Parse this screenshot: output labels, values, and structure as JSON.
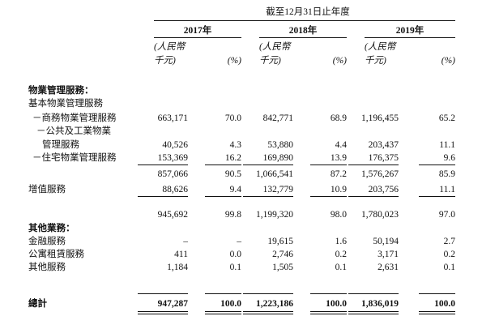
{
  "header": {
    "title": "截至12月31日止年度",
    "years": [
      "2017年",
      "2018年",
      "2019年"
    ],
    "units": [
      {
        "amount": [
          "(人民幣",
          "千元)"
        ],
        "pct": "(%)"
      },
      {
        "amount": [
          "(人民幣",
          "千元)"
        ],
        "pct": "(%)"
      },
      {
        "amount": [
          "(人民幣",
          "千元)"
        ],
        "pct": "(%)"
      }
    ]
  },
  "table": {
    "rows": [
      {
        "label": "物業管理服務："
      },
      {
        "label": "基本物業管理服務"
      },
      {
        "label": "－商務物業管理服務",
        "cells": [
          "663,171",
          "70.0",
          "842,771",
          "68.9",
          "1,196,455",
          "65.2"
        ]
      },
      {
        "label": "－公共及工業物業"
      },
      {
        "label": "管理服務",
        "cells": [
          "40,526",
          "4.3",
          "53,880",
          "4.4",
          "203,437",
          "11.1"
        ]
      },
      {
        "label": "－住宅物業管理服務",
        "cells": [
          "153,369",
          "16.2",
          "169,890",
          "13.9",
          "176,375",
          "9.6"
        ]
      },
      {
        "cells": [
          "857,066",
          "90.5",
          "1,066,541",
          "87.2",
          "1,576,267",
          "85.9"
        ]
      },
      {
        "label": "增值服務",
        "cells": [
          "88,626",
          "9.4",
          "132,779",
          "10.9",
          "203,756",
          "11.1"
        ]
      },
      {
        "cells": [
          "945,692",
          "99.8",
          "1,199,320",
          "98.0",
          "1,780,023",
          "97.0"
        ]
      },
      {
        "label": "其他業務："
      },
      {
        "label": "金融服務",
        "cells": [
          "–",
          "–",
          "19,615",
          "1.6",
          "50,194",
          "2.7"
        ]
      },
      {
        "label": "公寓租賃服務",
        "cells": [
          "411",
          "0.0",
          "2,746",
          "0.2",
          "3,171",
          "0.2"
        ]
      },
      {
        "label": "其他服務",
        "cells": [
          "1,184",
          "0.1",
          "1,505",
          "0.1",
          "2,631",
          "0.1"
        ]
      },
      {
        "label": "總計",
        "cells": [
          "947,287",
          "100.0",
          "1,223,186",
          "100.0",
          "1,836,019",
          "100.0"
        ]
      }
    ]
  }
}
